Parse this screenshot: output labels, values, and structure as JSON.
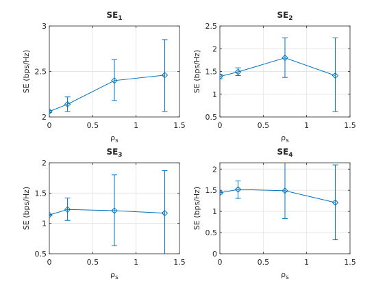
{
  "figure": {
    "background": "#ffffff"
  },
  "style": {
    "series_color": "#0072BD",
    "grid_color": "#e6e6e6",
    "axis_color": "#262626"
  },
  "chart_data": [
    {
      "type": "line",
      "title": "SE",
      "title_sub": "1",
      "xlabel": "ρ",
      "xlabel_sub": "s",
      "ylabel": "SE (bps/Hz)",
      "xlim": [
        0,
        1.5
      ],
      "ylim": [
        2,
        3
      ],
      "xticks": [
        0,
        0.5,
        1,
        1.5
      ],
      "xtick_labels": [
        "0",
        "0.5",
        "1",
        "1.5"
      ],
      "yticks": [
        2,
        2.5,
        3
      ],
      "ytick_labels": [
        "2",
        "2.5",
        "3"
      ],
      "grid": true,
      "marker": "diamond",
      "series": [
        {
          "x": [
            0,
            0.21,
            0.75,
            1.33
          ],
          "y": [
            2.06,
            2.14,
            2.4,
            2.46
          ],
          "err_low": [
            0.01,
            0.08,
            0.22,
            0.4
          ],
          "err_high": [
            0.01,
            0.08,
            0.23,
            0.39
          ]
        }
      ]
    },
    {
      "type": "line",
      "title": "SE",
      "title_sub": "2",
      "xlabel": "ρ",
      "xlabel_sub": "s",
      "ylabel": "SE (bps/Hz)",
      "xlim": [
        0,
        1.5
      ],
      "ylim": [
        0.5,
        2.5
      ],
      "xticks": [
        0,
        0.5,
        1,
        1.5
      ],
      "xtick_labels": [
        "0",
        "0.5",
        "1",
        "1.5"
      ],
      "yticks": [
        0.5,
        1,
        1.5,
        2,
        2.5
      ],
      "ytick_labels": [
        "0.5",
        "1",
        "1.5",
        "2",
        "2.5"
      ],
      "grid": true,
      "marker": "diamond",
      "series": [
        {
          "x": [
            0,
            0.21,
            0.75,
            1.33
          ],
          "y": [
            1.39,
            1.49,
            1.8,
            1.41
          ],
          "err_low": [
            0.05,
            0.08,
            0.43,
            0.79
          ],
          "err_high": [
            0.05,
            0.09,
            0.44,
            0.83
          ]
        }
      ]
    },
    {
      "type": "line",
      "title": "SE",
      "title_sub": "3",
      "xlabel": "ρ",
      "xlabel_sub": "s",
      "ylabel": "SE (bps/Hz)",
      "xlim": [
        0,
        1.5
      ],
      "ylim": [
        0.5,
        2
      ],
      "xticks": [
        0,
        0.5,
        1,
        1.5
      ],
      "xtick_labels": [
        "0",
        "0.5",
        "1",
        "1.5"
      ],
      "yticks": [
        0.5,
        1,
        1.5,
        2
      ],
      "ytick_labels": [
        "0.5",
        "1",
        "1.5",
        "2"
      ],
      "grid": true,
      "marker": "diamond",
      "series": [
        {
          "x": [
            0,
            0.21,
            0.75,
            1.33
          ],
          "y": [
            1.14,
            1.23,
            1.21,
            1.17
          ],
          "err_low": [
            0.01,
            0.18,
            0.58,
            0.7
          ],
          "err_high": [
            0.01,
            0.19,
            0.59,
            0.7
          ]
        }
      ]
    },
    {
      "type": "line",
      "title": "SE",
      "title_sub": "4",
      "xlabel": "ρ",
      "xlabel_sub": "s",
      "ylabel": "SE (bps/Hz)",
      "xlim": [
        0,
        1.5
      ],
      "ylim": [
        0,
        2.15
      ],
      "xticks": [
        0,
        0.5,
        1,
        1.5
      ],
      "xtick_labels": [
        "0",
        "0.5",
        "1",
        "1.5"
      ],
      "yticks": [
        0,
        0.5,
        1,
        1.5,
        2
      ],
      "ytick_labels": [
        "0",
        "0.5",
        "1",
        "1.5",
        "2"
      ],
      "grid": true,
      "marker": "diamond",
      "series": [
        {
          "x": [
            0,
            0.21,
            0.75,
            1.33
          ],
          "y": [
            1.44,
            1.52,
            1.49,
            1.21
          ],
          "err_low": [
            0.03,
            0.21,
            0.66,
            0.88
          ],
          "err_high": [
            0.03,
            0.2,
            0.66,
            0.89
          ]
        }
      ]
    }
  ]
}
